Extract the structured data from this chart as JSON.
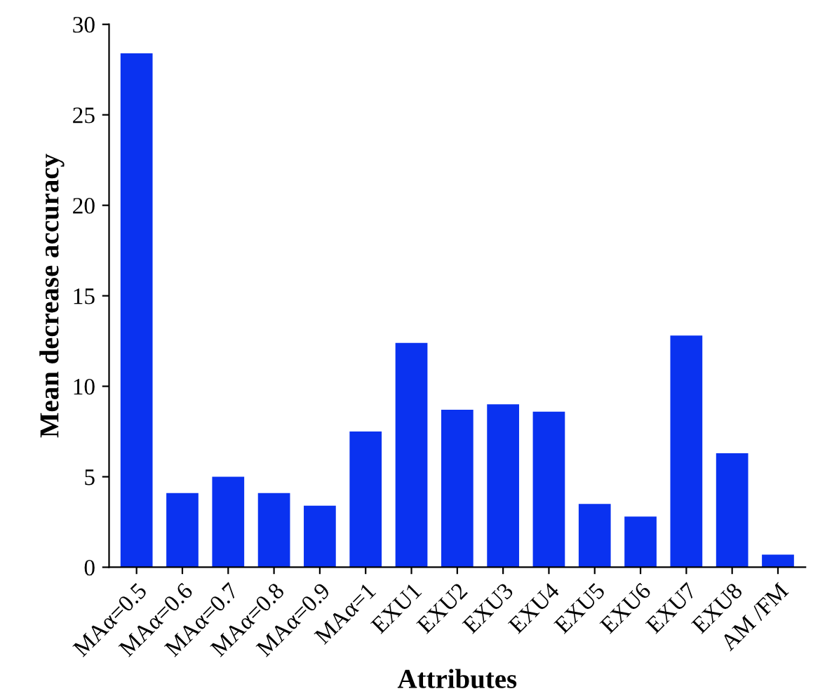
{
  "chart_data": {
    "type": "bar",
    "xlabel": "Attributes",
    "ylabel": "Mean decrease accuracy",
    "categories": [
      "MAα=0.5",
      "MAα=0.6",
      "MAα=0.7",
      "MAα=0.8",
      "MAα=0.9",
      "MAα=1",
      "EXU1",
      "EXU2",
      "EXU3",
      "EXU4",
      "EXU5",
      "EXU6",
      "EXU7",
      "EXU8",
      "AM /FM"
    ],
    "values": [
      28.4,
      4.1,
      5.0,
      4.1,
      3.4,
      7.5,
      12.4,
      8.7,
      9.0,
      8.6,
      3.5,
      2.8,
      12.8,
      6.3,
      0.7
    ],
    "color": "#0a32f0",
    "ylim": [
      0,
      30
    ],
    "yticks": [
      0,
      5,
      10,
      15,
      20,
      25,
      30
    ],
    "grid": false,
    "legend": false
  }
}
